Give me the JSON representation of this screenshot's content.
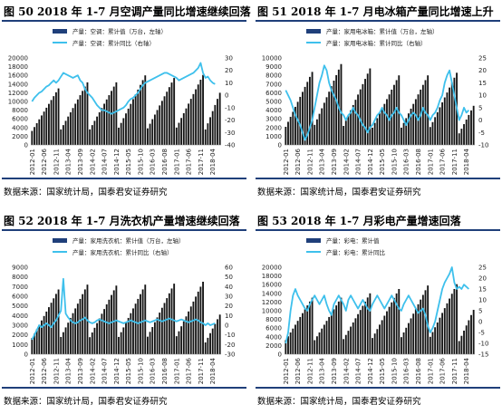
{
  "colors": {
    "bar": "#151515",
    "line": "#3ec0ec",
    "legendBar": "#1f3f7a",
    "rule": "#1f3f7a"
  },
  "chart_data": [
    {
      "title": "图 50 2018 年 1-7 月空调产量同比增速继续回落",
      "source": "数据来源：国家统计局，国泰君安证券研究",
      "legend": [
        "产量：空调：累计值（万台，左轴）",
        "产量：空调：累计同比（右轴）"
      ],
      "type": "bar+line",
      "x_ticks": [
        "2012-01",
        "2012-06",
        "2012-11",
        "2013-04",
        "2013-09",
        "2014-02",
        "2014-07",
        "2014-12",
        "2015-05",
        "2015-10",
        "2016-03",
        "2016-08",
        "2017-01",
        "2017-06",
        "2017-11",
        "2018-04"
      ],
      "y_left": [
        0,
        2000,
        4000,
        6000,
        8000,
        10000,
        12000,
        14000,
        16000,
        18000,
        20000
      ],
      "y_right": [
        -40,
        -30,
        -20,
        -10,
        0,
        10,
        20,
        30
      ],
      "ylim_left": [
        0,
        20000
      ],
      "ylim_right": [
        -40,
        30
      ],
      "bar_peaks": [
        13000,
        14400,
        14400,
        16000,
        15400,
        16100,
        18000
      ],
      "bar_end": 12000,
      "line": [
        -5,
        -2,
        0,
        2,
        3,
        5,
        7,
        8,
        10,
        12,
        10,
        12,
        15,
        18,
        17,
        16,
        15,
        14,
        15,
        16,
        12,
        10,
        5,
        2,
        0,
        -2,
        -5,
        -8,
        -10,
        -12,
        -12,
        -13,
        -14,
        -15,
        -14,
        -13,
        -12,
        -11,
        -10,
        -8,
        -5,
        -3,
        -2,
        0,
        2,
        5,
        8,
        10,
        11,
        12,
        13,
        14,
        15,
        16,
        17,
        18,
        18,
        17,
        16,
        15,
        14,
        12,
        13,
        14,
        15,
        16,
        17,
        18,
        20,
        22,
        26,
        18,
        14,
        15,
        12,
        10,
        9
      ]
    },
    {
      "title": "图 51 2018 年 1-7 月电冰箱产量同比增速上升",
      "source": "数据来源：国家统计局，国泰君安证券研究",
      "legend": [
        "产量：家用电冰箱：累计值（万台，左轴）",
        "产量：家用电冰箱：累计同比（右轴）"
      ],
      "type": "bar+line",
      "x_ticks": [
        "2012-01",
        "2012-06",
        "2012-11",
        "2013-04",
        "2013-09",
        "2014-02",
        "2014-07",
        "2014-12",
        "2015-05",
        "2015-10",
        "2016-03",
        "2016-08",
        "2017-01",
        "2017-06",
        "2017-11",
        "2018-04"
      ],
      "y_left": [
        0,
        1000,
        2000,
        3000,
        4000,
        5000,
        6000,
        7000,
        8000,
        9000,
        10000
      ],
      "y_right": [
        -10,
        -5,
        0,
        5,
        10,
        15,
        20,
        25
      ],
      "ylim_left": [
        0,
        10000
      ],
      "ylim_right": [
        -10,
        25
      ],
      "bar_peaks": [
        8400,
        9300,
        8800,
        8000,
        8000,
        8300,
        8800
      ],
      "bar_end": 4500,
      "line": [
        12,
        10,
        8,
        5,
        2,
        0,
        -2,
        -5,
        -8,
        -6,
        -3,
        0,
        5,
        10,
        15,
        18,
        22,
        20,
        15,
        12,
        10,
        8,
        5,
        3,
        2,
        0,
        2,
        3,
        5,
        3,
        2,
        0,
        -2,
        -3,
        -5,
        -3,
        -2,
        0,
        2,
        3,
        5,
        3,
        2,
        0,
        2,
        3,
        5,
        3,
        2,
        0,
        -2,
        0,
        2,
        3,
        2,
        0,
        2,
        5,
        3,
        2,
        0,
        2,
        3,
        5,
        8,
        10,
        15,
        18,
        20,
        15,
        10,
        5,
        0,
        2,
        5,
        3,
        4
      ]
    },
    {
      "title": "图 52 2018 年 1-7 月洗衣机产量增速继续回落",
      "source": "数据来源：国家统计局，国泰君安证券研究",
      "legend": [
        "产量：家用洗衣机：累计值（万台，左轴）",
        "产量：家用洗衣机：累计同比（右轴）"
      ],
      "type": "bar+line",
      "x_ticks": [
        "2012-01",
        "2012-06",
        "2012-11",
        "2013-04",
        "2013-09",
        "2014-02",
        "2014-07",
        "2014-12",
        "2015-05",
        "2015-10",
        "2016-03",
        "2016-08",
        "2017-01",
        "2017-06",
        "2017-11",
        "2018-04"
      ],
      "y_left": [
        0,
        1000,
        2000,
        3000,
        4000,
        5000,
        6000,
        7000,
        8000,
        9000
      ],
      "y_right": [
        -30,
        -20,
        -10,
        0,
        10,
        20,
        30,
        40,
        50,
        60
      ],
      "ylim_left": [
        0,
        9000
      ],
      "ylim_right": [
        -30,
        60
      ],
      "bar_peaks": [
        6700,
        7200,
        7100,
        7200,
        7300,
        7500,
        7800
      ],
      "bar_end": 4100,
      "line": [
        -15,
        -10,
        -5,
        0,
        -2,
        0,
        2,
        0,
        -2,
        2,
        5,
        10,
        15,
        48,
        12,
        8,
        5,
        3,
        2,
        3,
        5,
        6,
        8,
        5,
        3,
        2,
        3,
        5,
        6,
        5,
        4,
        3,
        2,
        3,
        4,
        5,
        4,
        3,
        2,
        3,
        4,
        5,
        4,
        3,
        2,
        3,
        4,
        5,
        4,
        3,
        4,
        5,
        6,
        5,
        4,
        5,
        6,
        7,
        6,
        5,
        4,
        5,
        6,
        5,
        4,
        3,
        4,
        5,
        6,
        5,
        3,
        2,
        0,
        2,
        0,
        1,
        2
      ]
    },
    {
      "title": "图 53 2018 年 1-7 月彩电产量增速回落",
      "source": "数据来源：国家统计局，国泰君安证券研究",
      "legend": [
        "产量：彩电：累计值",
        "产量：彩电：累计同比"
      ],
      "type": "bar+line",
      "x_ticks": [
        "2012-01",
        "2012-06",
        "2012-11",
        "2013-04",
        "2013-09",
        "2014-02",
        "2014-07",
        "2014-12",
        "2015-05",
        "2015-10",
        "2016-03",
        "2016-08",
        "2017-01",
        "2017-06",
        "2017-11",
        "2018-04"
      ],
      "y_left": [
        0,
        2000,
        4000,
        6000,
        8000,
        10000,
        12000,
        14000,
        16000,
        18000,
        20000
      ],
      "y_right": [
        -15,
        -10,
        -5,
        0,
        5,
        10,
        15,
        20,
        25
      ],
      "ylim_left": [
        0,
        20000
      ],
      "ylim_right": [
        -15,
        25
      ],
      "bar_peaks": [
        13000,
        13000,
        14000,
        15000,
        15800,
        16100,
        17000
      ],
      "bar_end": 10200,
      "line": [
        -10,
        -5,
        5,
        12,
        15,
        12,
        10,
        8,
        6,
        5,
        8,
        10,
        12,
        10,
        8,
        10,
        12,
        8,
        5,
        3,
        8,
        10,
        12,
        10,
        8,
        5,
        10,
        12,
        10,
        8,
        6,
        8,
        10,
        8,
        6,
        5,
        8,
        10,
        12,
        10,
        8,
        6,
        8,
        10,
        12,
        10,
        8,
        6,
        5,
        8,
        10,
        12,
        10,
        8,
        6,
        4,
        5,
        6,
        3,
        -2,
        -5,
        -3,
        0,
        5,
        10,
        15,
        18,
        20,
        22,
        25,
        18,
        15,
        16,
        15,
        17,
        16,
        15
      ]
    }
  ]
}
